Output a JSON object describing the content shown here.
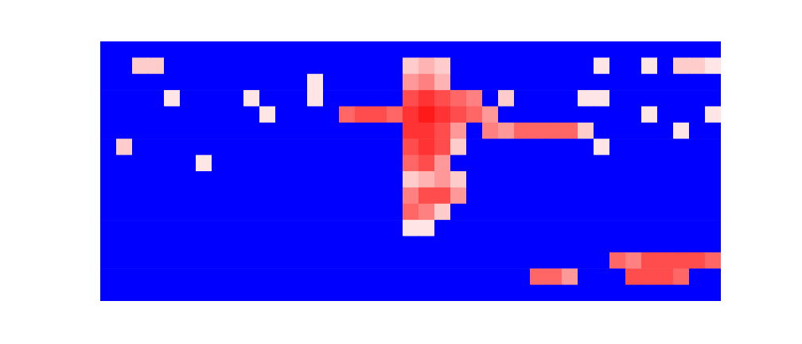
{
  "chart_data": {
    "type": "heatmap",
    "tick_labels": false,
    "zlim": [
      0,
      1
    ],
    "cells": [
      [
        0,
        0,
        0,
        0,
        0,
        0,
        0,
        0,
        0,
        0,
        0,
        0,
        0,
        0,
        0,
        0,
        0,
        0,
        0,
        0,
        0,
        0,
        0,
        0,
        0,
        0,
        0,
        0,
        0,
        0,
        0,
        0,
        0,
        0,
        0,
        0,
        0,
        0,
        0
      ],
      [
        0,
        0,
        0.6,
        0.6,
        0,
        0,
        0,
        0,
        0,
        0,
        0,
        0,
        0,
        0,
        0,
        0,
        0,
        0,
        0,
        0.6,
        0.65,
        0.6,
        0,
        0,
        0,
        0,
        0,
        0,
        0,
        0,
        0,
        0.55,
        0,
        0,
        0.55,
        0,
        0.6,
        0.6,
        0.55
      ],
      [
        0,
        0,
        0,
        0,
        0,
        0,
        0,
        0,
        0,
        0,
        0,
        0,
        0,
        0.55,
        0,
        0,
        0,
        0,
        0,
        0.7,
        0.75,
        0.65,
        0,
        0,
        0,
        0,
        0,
        0,
        0,
        0,
        0,
        0,
        0,
        0,
        0,
        0,
        0,
        0,
        0
      ],
      [
        0,
        0,
        0,
        0,
        0.55,
        0,
        0,
        0,
        0,
        0.55,
        0,
        0,
        0,
        0.55,
        0,
        0,
        0,
        0,
        0,
        0.85,
        0.9,
        0.85,
        0.8,
        0.75,
        0,
        0.6,
        0,
        0,
        0,
        0,
        0.55,
        0.55,
        0,
        0,
        0,
        0,
        0,
        0,
        0
      ],
      [
        0,
        0,
        0,
        0,
        0,
        0,
        0,
        0,
        0,
        0,
        0.55,
        0,
        0,
        0,
        0,
        0.8,
        0.85,
        0.85,
        0.8,
        0.9,
        0.95,
        0.9,
        0.85,
        0.8,
        0.7,
        0,
        0,
        0,
        0,
        0,
        0,
        0,
        0,
        0,
        0.55,
        0,
        0,
        0,
        0.55
      ],
      [
        0,
        0,
        0,
        0,
        0,
        0,
        0,
        0,
        0,
        0,
        0,
        0,
        0,
        0,
        0,
        0,
        0,
        0,
        0,
        0.9,
        0.9,
        0.85,
        0.7,
        0,
        0.75,
        0.7,
        0.8,
        0.8,
        0.8,
        0.8,
        0.6,
        0,
        0,
        0,
        0,
        0,
        0.55,
        0,
        0
      ],
      [
        0,
        0.6,
        0,
        0,
        0,
        0,
        0,
        0,
        0,
        0,
        0,
        0,
        0,
        0,
        0,
        0,
        0,
        0,
        0,
        0.85,
        0.9,
        0.85,
        0.6,
        0,
        0,
        0,
        0,
        0,
        0,
        0,
        0,
        0.55,
        0,
        0,
        0,
        0,
        0,
        0,
        0
      ],
      [
        0,
        0,
        0,
        0,
        0,
        0,
        0.55,
        0,
        0,
        0,
        0,
        0,
        0,
        0,
        0,
        0,
        0,
        0,
        0,
        0.8,
        0.85,
        0.7,
        0,
        0,
        0,
        0,
        0,
        0,
        0,
        0,
        0,
        0,
        0,
        0,
        0,
        0,
        0,
        0,
        0
      ],
      [
        0,
        0,
        0,
        0,
        0,
        0,
        0,
        0,
        0,
        0,
        0,
        0,
        0,
        0,
        0,
        0,
        0,
        0,
        0,
        0.6,
        0.65,
        0.7,
        0.6,
        0,
        0,
        0,
        0,
        0,
        0,
        0,
        0,
        0,
        0,
        0,
        0,
        0,
        0,
        0,
        0
      ],
      [
        0,
        0,
        0,
        0,
        0,
        0,
        0,
        0,
        0,
        0,
        0,
        0,
        0,
        0,
        0,
        0,
        0,
        0,
        0,
        0.75,
        0.85,
        0.85,
        0.7,
        0,
        0,
        0,
        0,
        0,
        0,
        0,
        0,
        0,
        0,
        0,
        0,
        0,
        0,
        0,
        0
      ],
      [
        0,
        0,
        0,
        0,
        0,
        0,
        0,
        0,
        0,
        0,
        0,
        0,
        0,
        0,
        0,
        0,
        0,
        0,
        0,
        0.8,
        0.75,
        0.6,
        0,
        0,
        0,
        0,
        0,
        0,
        0,
        0,
        0,
        0,
        0,
        0,
        0,
        0,
        0,
        0,
        0
      ],
      [
        0,
        0,
        0,
        0,
        0,
        0,
        0,
        0,
        0,
        0,
        0,
        0,
        0,
        0,
        0,
        0,
        0,
        0,
        0,
        0.55,
        0.55,
        0,
        0,
        0,
        0,
        0,
        0,
        0,
        0,
        0,
        0,
        0,
        0,
        0,
        0,
        0,
        0,
        0,
        0
      ],
      [
        0,
        0,
        0,
        0,
        0,
        0,
        0,
        0,
        0,
        0,
        0,
        0,
        0,
        0,
        0,
        0,
        0,
        0,
        0,
        0,
        0,
        0,
        0,
        0,
        0,
        0,
        0,
        0,
        0,
        0,
        0,
        0,
        0,
        0,
        0,
        0,
        0,
        0,
        0
      ],
      [
        0,
        0,
        0,
        0,
        0,
        0,
        0,
        0,
        0,
        0,
        0,
        0,
        0,
        0,
        0,
        0,
        0,
        0,
        0,
        0,
        0,
        0,
        0,
        0,
        0,
        0,
        0,
        0,
        0,
        0,
        0,
        0,
        0.8,
        0.75,
        0.85,
        0.85,
        0.85,
        0.85,
        0.8
      ],
      [
        0,
        0,
        0,
        0,
        0,
        0,
        0,
        0,
        0,
        0,
        0,
        0,
        0,
        0,
        0,
        0,
        0,
        0,
        0,
        0,
        0,
        0,
        0,
        0,
        0,
        0,
        0,
        0.8,
        0.8,
        0.7,
        0,
        0,
        0,
        0.85,
        0.85,
        0.85,
        0.8,
        0,
        0
      ],
      [
        0,
        0,
        0,
        0,
        0,
        0,
        0,
        0,
        0,
        0,
        0,
        0,
        0,
        0,
        0,
        0,
        0,
        0,
        0,
        0,
        0,
        0,
        0,
        0,
        0,
        0,
        0,
        0,
        0,
        0,
        0,
        0,
        0,
        0,
        0,
        0,
        0,
        0,
        0
      ]
    ]
  }
}
